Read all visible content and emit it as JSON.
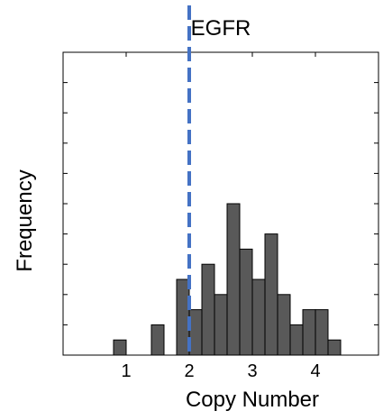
{
  "chart_data": {
    "type": "bar",
    "title": "EGFR",
    "xlabel": "Copy Number",
    "ylabel": "Frequency",
    "xlim": [
      0.0,
      5.0
    ],
    "ylim": [
      0,
      10
    ],
    "bin_width": 0.2,
    "bins": [
      {
        "x0": 0.8,
        "x1": 1.0,
        "count": 0.5
      },
      {
        "x0": 1.4,
        "x1": 1.6,
        "count": 1
      },
      {
        "x0": 1.8,
        "x1": 2.0,
        "count": 2.5
      },
      {
        "x0": 2.0,
        "x1": 2.2,
        "count": 1.5
      },
      {
        "x0": 2.2,
        "x1": 2.4,
        "count": 3
      },
      {
        "x0": 2.4,
        "x1": 2.6,
        "count": 2
      },
      {
        "x0": 2.6,
        "x1": 2.8,
        "count": 5
      },
      {
        "x0": 2.8,
        "x1": 3.0,
        "count": 3.5
      },
      {
        "x0": 3.0,
        "x1": 3.2,
        "count": 2.5
      },
      {
        "x0": 3.2,
        "x1": 3.4,
        "count": 4
      },
      {
        "x0": 3.4,
        "x1": 3.6,
        "count": 2
      },
      {
        "x0": 3.6,
        "x1": 3.8,
        "count": 1
      },
      {
        "x0": 3.8,
        "x1": 4.0,
        "count": 1.5
      },
      {
        "x0": 4.0,
        "x1": 4.2,
        "count": 1.5
      },
      {
        "x0": 4.2,
        "x1": 4.4,
        "count": 0.5
      }
    ],
    "x_ticks": [
      1,
      2,
      3,
      4
    ],
    "x_tick_labels": [
      "1",
      "2",
      "3",
      "4"
    ],
    "y_ticks_minor": [
      1,
      2,
      3,
      4,
      5,
      6,
      7,
      8,
      9
    ],
    "reference_line": {
      "x": 2.0,
      "style": "dashed",
      "color": "#4472c4"
    },
    "bar_color": "#595959",
    "bar_edge_color": "#000000",
    "grid": false,
    "legend": "none"
  }
}
